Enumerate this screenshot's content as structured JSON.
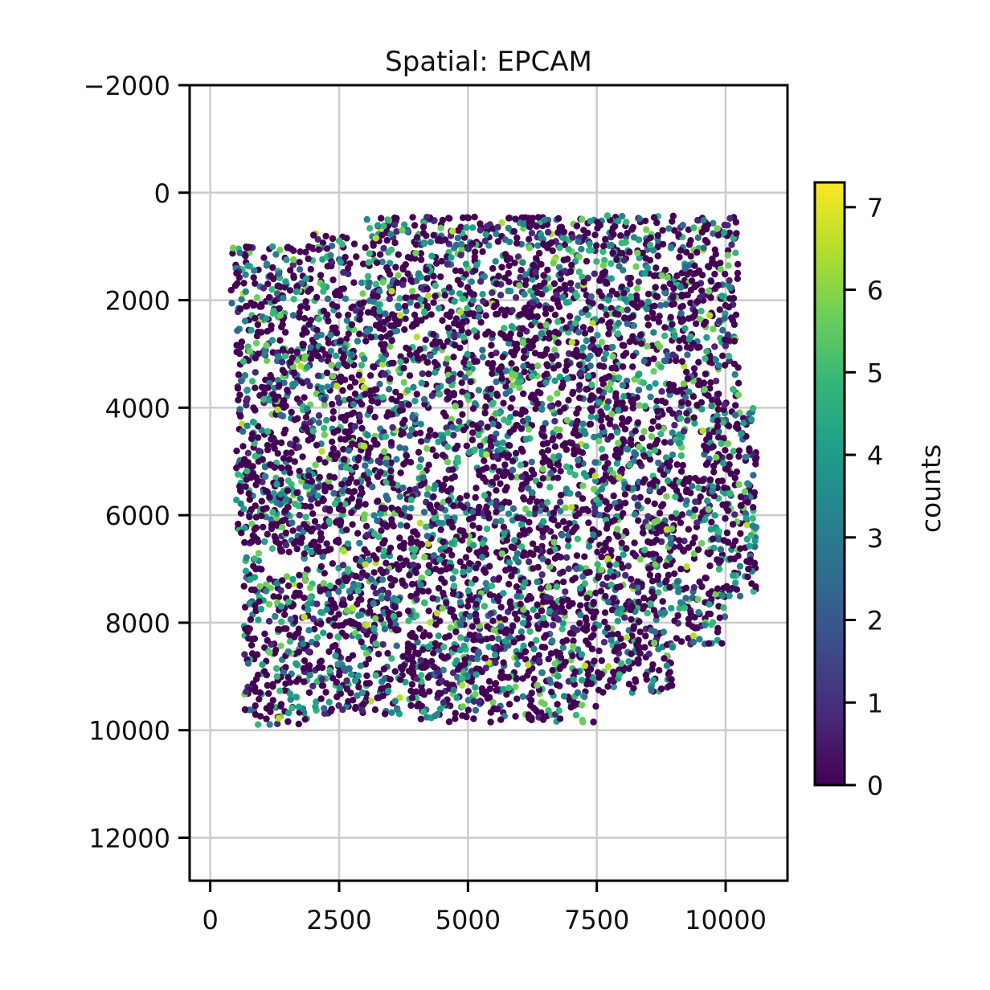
{
  "chart_data": {
    "type": "scatter",
    "title": "Spatial: EPCAM",
    "xlabel": "",
    "ylabel": "",
    "xlim": [
      -400,
      11200
    ],
    "ylim": [
      12800,
      -2000
    ],
    "y_inverted": true,
    "grid": true,
    "x_ticks": [
      0,
      2500,
      5000,
      7500,
      10000
    ],
    "x_tick_labels": [
      "0",
      "2500",
      "5000",
      "7500",
      "10000"
    ],
    "y_ticks": [
      -2000,
      0,
      2000,
      4000,
      6000,
      8000,
      10000,
      12000
    ],
    "y_tick_labels": [
      "−2000",
      "0",
      "2000",
      "4000",
      "6000",
      "8000",
      "10000",
      "12000"
    ],
    "tissue_region_approx": {
      "x_range": [
        400,
        10600
      ],
      "y_range": [
        400,
        10100
      ]
    },
    "series": [
      {
        "color_by": "counts",
        "colormap": "viridis",
        "value_range": [
          0,
          7.3
        ],
        "point_count_approx": "dense (tens of thousands)"
      }
    ],
    "colorbar": {
      "label": "counts",
      "ticks": [
        0,
        1,
        2,
        3,
        4,
        5,
        6,
        7
      ],
      "tick_labels": [
        "0",
        "1",
        "2",
        "3",
        "4",
        "5",
        "6",
        "7"
      ],
      "range": [
        0,
        7.3
      ],
      "colormap": "viridis"
    }
  },
  "colors": {
    "grid": "#cccccc",
    "axis": "#000000",
    "viridis": [
      "#440154",
      "#482878",
      "#3e4989",
      "#31688e",
      "#26828e",
      "#1f9e89",
      "#35b779",
      "#6ece58",
      "#b5de2b",
      "#fde725"
    ]
  }
}
